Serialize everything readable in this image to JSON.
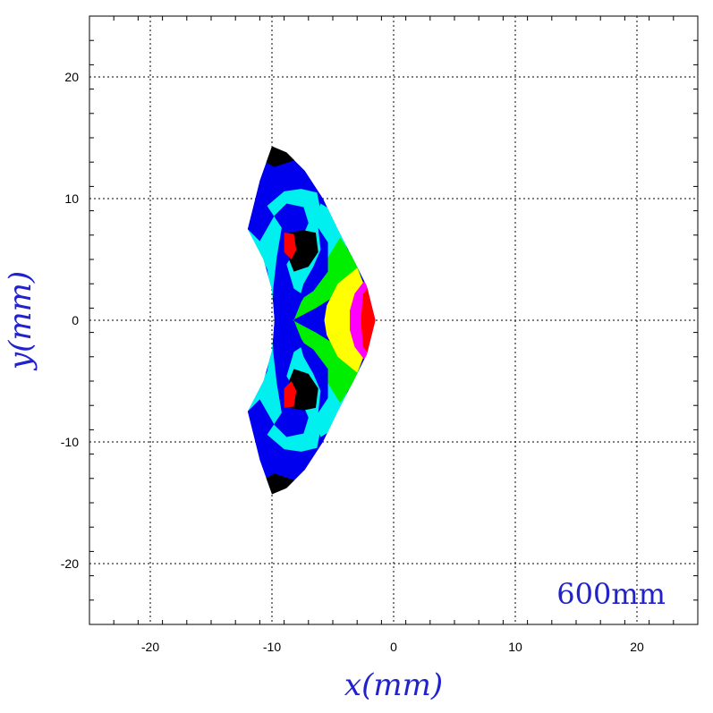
{
  "chart_data": {
    "type": "heatmap",
    "xlabel": "x(mm)",
    "ylabel": "y(mm)",
    "annotation": "600mm",
    "xlim": [
      -25,
      25
    ],
    "ylim": [
      -25,
      25
    ],
    "xticks": [
      -20,
      -10,
      0,
      10,
      20
    ],
    "yticks": [
      -20,
      -10,
      0,
      10,
      20
    ],
    "xtick_labels": [
      "-20",
      "-10",
      "0",
      "10",
      "20"
    ],
    "ytick_labels": [
      "-20",
      "-10",
      "0",
      "10",
      "20"
    ],
    "minor_tick_step": 2,
    "grid": true,
    "colors": {
      "black": "#000000",
      "blue": "#0000ee",
      "cyan": "#00f0f0",
      "green": "#00ee00",
      "yellow": "#ffff00",
      "magenta": "#ff00ff",
      "red": "#ff0000",
      "text": "#2222cc"
    }
  }
}
